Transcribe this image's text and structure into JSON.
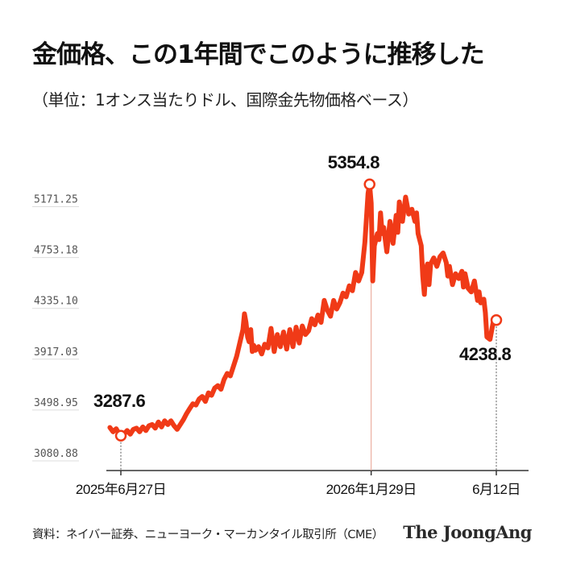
{
  "header": {
    "title": "金価格、この1年間でこのように推移した",
    "subtitle": "（単位：1オンス当たりドル、国際金先物価格ベース）"
  },
  "footer": {
    "source": "資料：ネイバー証券、ニューヨーク・マーカンタイル取引所（CME）",
    "brand": "The JoongAng"
  },
  "colors": {
    "line": "#f03a17",
    "grid": "#dddddd",
    "axis": "#333333",
    "text": "#111111",
    "tick_text": "#555555"
  },
  "chart_data": {
    "type": "line",
    "title": "金価格、この1年間でこのように推移した",
    "subtitle": "（単位：1オンス当たりドル、国際金先物価格ベース）",
    "ylim": [
      3080.88,
      5466.0
    ],
    "yticks": [
      3080.88,
      3498.95,
      3917.03,
      4335.1,
      4753.18,
      5171.25
    ],
    "ytick_labels": [
      "3080.88",
      "3498.95",
      "3917.03",
      "4335.10",
      "4753.18",
      "5171.25"
    ],
    "xlim": [
      0,
      240
    ],
    "xticks": [
      {
        "x": 0,
        "label": "2025年6月27日"
      },
      {
        "x": 160,
        "label": "2026年1月29日"
      },
      {
        "x": 240,
        "label": "6月12日"
      }
    ],
    "grid": true,
    "series": [
      {
        "color": "#f03a17",
        "points": [
          [
            -7,
            3355
          ],
          [
            -5,
            3320
          ],
          [
            -3,
            3345
          ],
          [
            -1,
            3300
          ],
          [
            0,
            3287.6
          ],
          [
            2,
            3300
          ],
          [
            4,
            3330
          ],
          [
            6,
            3300
          ],
          [
            8,
            3340
          ],
          [
            10,
            3350
          ],
          [
            12,
            3320
          ],
          [
            14,
            3360
          ],
          [
            16,
            3330
          ],
          [
            18,
            3370
          ],
          [
            20,
            3380
          ],
          [
            22,
            3350
          ],
          [
            24,
            3400
          ],
          [
            26,
            3360
          ],
          [
            28,
            3410
          ],
          [
            30,
            3380
          ],
          [
            32,
            3410
          ],
          [
            34,
            3370
          ],
          [
            36,
            3340
          ],
          [
            38,
            3380
          ],
          [
            40,
            3420
          ],
          [
            42,
            3470
          ],
          [
            44,
            3510
          ],
          [
            46,
            3550
          ],
          [
            48,
            3540
          ],
          [
            50,
            3590
          ],
          [
            52,
            3610
          ],
          [
            54,
            3570
          ],
          [
            56,
            3640
          ],
          [
            58,
            3620
          ],
          [
            60,
            3680
          ],
          [
            62,
            3700
          ],
          [
            64,
            3670
          ],
          [
            66,
            3750
          ],
          [
            68,
            3800
          ],
          [
            70,
            3780
          ],
          [
            72,
            3860
          ],
          [
            74,
            3940
          ],
          [
            76,
            4050
          ],
          [
            78,
            4160
          ],
          [
            79,
            4290
          ],
          [
            80,
            4220
          ],
          [
            81,
            4100
          ],
          [
            82,
            4060
          ],
          [
            83,
            4160
          ],
          [
            84,
            3980
          ],
          [
            85,
            4030
          ],
          [
            86,
            3990
          ],
          [
            88,
            4020
          ],
          [
            90,
            3960
          ],
          [
            92,
            4040
          ],
          [
            94,
            4010
          ],
          [
            96,
            4170
          ],
          [
            98,
            3980
          ],
          [
            100,
            4120
          ],
          [
            102,
            4020
          ],
          [
            104,
            4140
          ],
          [
            106,
            4000
          ],
          [
            108,
            4160
          ],
          [
            110,
            4020
          ],
          [
            112,
            4180
          ],
          [
            114,
            4050
          ],
          [
            116,
            4190
          ],
          [
            118,
            4120
          ],
          [
            120,
            4150
          ],
          [
            122,
            4250
          ],
          [
            124,
            4200
          ],
          [
            126,
            4280
          ],
          [
            128,
            4220
          ],
          [
            130,
            4400
          ],
          [
            132,
            4320
          ],
          [
            134,
            4270
          ],
          [
            136,
            4400
          ],
          [
            138,
            4330
          ],
          [
            140,
            4380
          ],
          [
            142,
            4460
          ],
          [
            144,
            4430
          ],
          [
            146,
            4520
          ],
          [
            148,
            4480
          ],
          [
            150,
            4630
          ],
          [
            152,
            4560
          ],
          [
            154,
            4630
          ],
          [
            156,
            4880
          ],
          [
            158,
            5280
          ],
          [
            159,
            5354.8
          ],
          [
            160,
            5200
          ],
          [
            161,
            4560
          ],
          [
            162,
            4850
          ],
          [
            164,
            4950
          ],
          [
            165,
            4900
          ],
          [
            166,
            5120
          ],
          [
            167,
            4950
          ],
          [
            168,
            5000
          ],
          [
            170,
            4800
          ],
          [
            172,
            5050
          ],
          [
            174,
            4870
          ],
          [
            176,
            5100
          ],
          [
            177,
            4960
          ],
          [
            178,
            5210
          ],
          [
            180,
            5050
          ],
          [
            182,
            5250
          ],
          [
            184,
            5110
          ],
          [
            186,
            5150
          ],
          [
            188,
            5050
          ],
          [
            189,
            5120
          ],
          [
            190,
            4950
          ],
          [
            192,
            4850
          ],
          [
            193,
            4600
          ],
          [
            194,
            4450
          ],
          [
            195,
            4660
          ],
          [
            196,
            4700
          ],
          [
            197,
            4530
          ],
          [
            198,
            4700
          ],
          [
            200,
            4750
          ],
          [
            202,
            4680
          ],
          [
            204,
            4760
          ],
          [
            206,
            4790
          ],
          [
            208,
            4710
          ],
          [
            209,
            4600
          ],
          [
            210,
            4680
          ],
          [
            212,
            4530
          ],
          [
            214,
            4620
          ],
          [
            216,
            4580
          ],
          [
            218,
            4640
          ],
          [
            219,
            4510
          ],
          [
            220,
            4620
          ],
          [
            222,
            4500
          ],
          [
            224,
            4470
          ],
          [
            226,
            4560
          ],
          [
            228,
            4400
          ],
          [
            229,
            4470
          ],
          [
            230,
            4380
          ],
          [
            232,
            4410
          ],
          [
            233,
            4300
          ],
          [
            234,
            4100
          ],
          [
            236,
            4080
          ],
          [
            238,
            4220
          ],
          [
            240,
            4238.8
          ]
        ]
      }
    ],
    "markers": [
      {
        "x": 0,
        "y": 3287.6,
        "label": "3287.6"
      },
      {
        "x": 159,
        "y": 5354.8,
        "label": "5354.8"
      },
      {
        "x": 240,
        "y": 4238.8,
        "label": "4238.8"
      }
    ]
  }
}
